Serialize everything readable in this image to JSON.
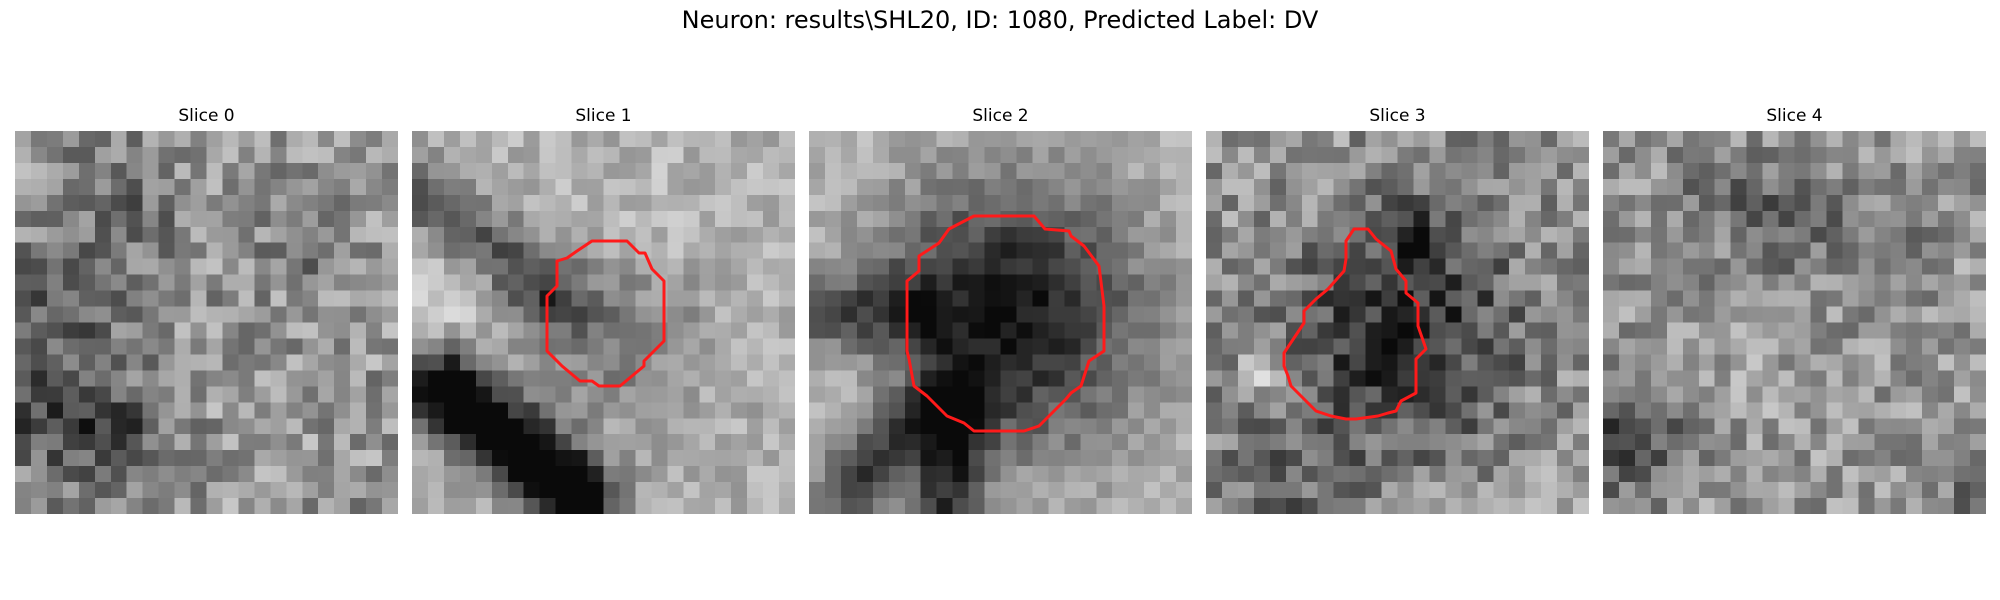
{
  "figure": {
    "title": "Neuron: results\\SHL20, ID: 1080, Predicted Label: DV"
  },
  "contour_color": "#ff1a1a",
  "slices": [
    {
      "title": "Slice 0",
      "has_contour": false
    },
    {
      "title": "Slice 1",
      "has_contour": true
    },
    {
      "title": "Slice 2",
      "has_contour": true
    },
    {
      "title": "Slice 3",
      "has_contour": true
    },
    {
      "title": "Slice 4",
      "has_contour": false
    }
  ]
}
